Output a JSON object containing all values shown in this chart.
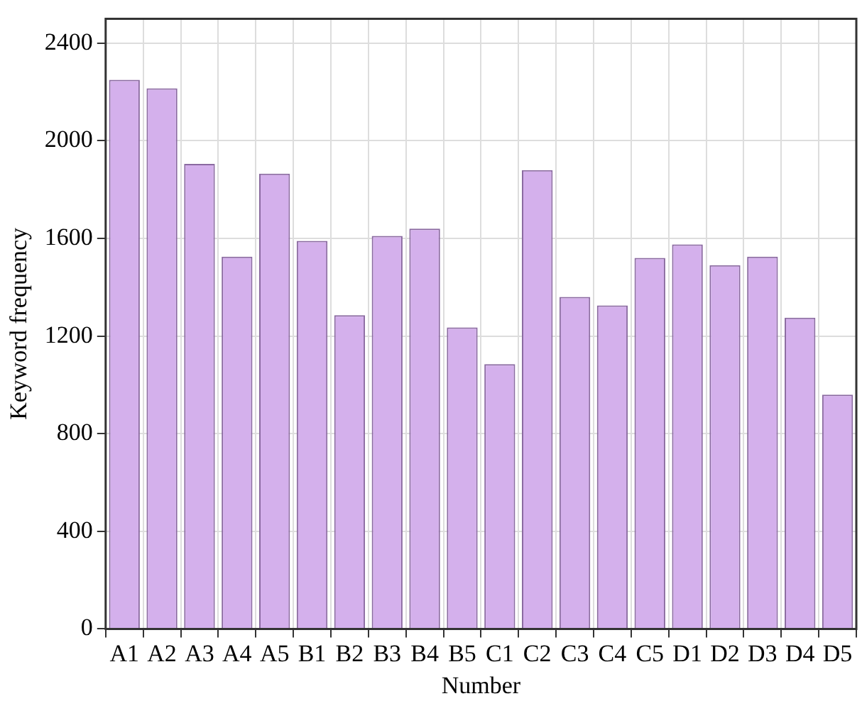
{
  "chart_data": {
    "type": "bar",
    "xlabel": "Number",
    "ylabel": "Keyword frequency",
    "categories": [
      "A1",
      "A2",
      "A3",
      "A4",
      "A5",
      "B1",
      "B2",
      "B3",
      "B4",
      "B5",
      "C1",
      "C2",
      "C3",
      "C4",
      "C5",
      "D1",
      "D2",
      "D3",
      "D4",
      "D5"
    ],
    "values": [
      2250,
      2215,
      1905,
      1525,
      1865,
      1590,
      1285,
      1610,
      1640,
      1235,
      1085,
      1880,
      1360,
      1325,
      1520,
      1575,
      1490,
      1525,
      1275,
      960
    ],
    "color": "#d4b0ec",
    "ylim": [
      0,
      2500
    ],
    "yticks": [
      0,
      400,
      800,
      1200,
      1600,
      2000,
      2400
    ],
    "grid": true,
    "legend": false
  }
}
